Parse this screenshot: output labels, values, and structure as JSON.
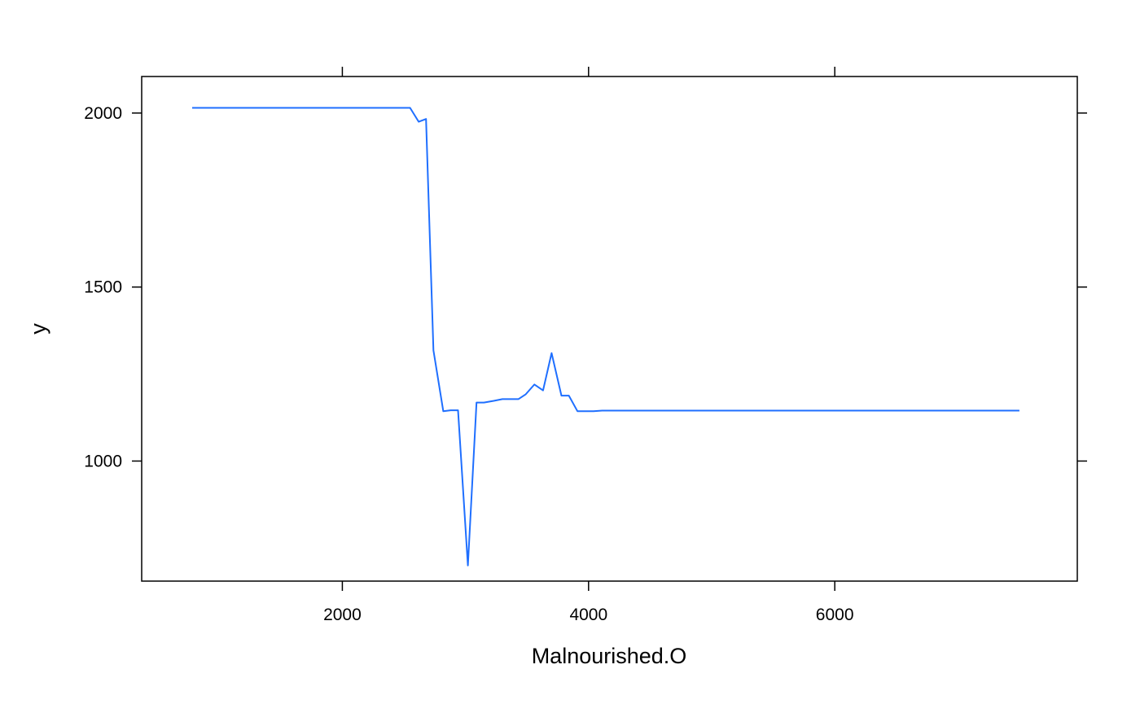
{
  "chart_data": {
    "type": "line",
    "title": "",
    "xlabel": "Malnourished.O",
    "ylabel": "y",
    "xlim": [
      370,
      7970
    ],
    "ylim": [
      655,
      2105
    ],
    "x_ticks": [
      {
        "value": 2000,
        "label": "2000"
      },
      {
        "value": 4000,
        "label": "4000"
      },
      {
        "value": 6000,
        "label": "6000"
      }
    ],
    "y_ticks": [
      {
        "value": 1000,
        "label": "1000"
      },
      {
        "value": 1500,
        "label": "1500"
      },
      {
        "value": 2000,
        "label": "2000"
      }
    ],
    "grid": false,
    "line_color": "#1f6fff",
    "series": [
      {
        "x": [
          780,
          2550,
          2620,
          2680,
          2740,
          2820,
          2880,
          2940,
          3020,
          3090,
          3150,
          3230,
          3300,
          3360,
          3430,
          3490,
          3560,
          3630,
          3700,
          3780,
          3840,
          3910,
          3980,
          4040,
          4110,
          7500
        ],
        "y": [
          2015,
          2015,
          1975,
          1983,
          1318,
          1143,
          1146,
          1146,
          700,
          1168,
          1168,
          1173,
          1178,
          1178,
          1178,
          1192,
          1220,
          1203,
          1310,
          1188,
          1188,
          1143,
          1143,
          1143,
          1145,
          1145
        ]
      }
    ]
  }
}
